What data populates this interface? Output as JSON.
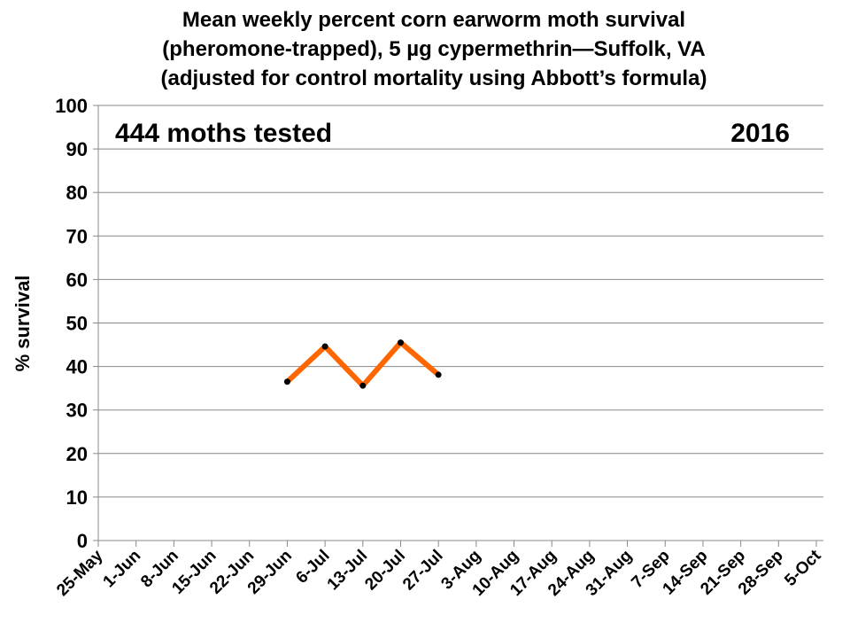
{
  "chart_data": {
    "type": "line",
    "title": [
      "Mean weekly percent corn earworm moth survival",
      "(pheromone-trapped), 5 µg cypermethrin—Suffolk, VA",
      "(adjusted for control mortality using Abbott’s formula)"
    ],
    "ylabel": "% survival",
    "xlabel": "",
    "ylim": [
      0,
      100
    ],
    "yticks": [
      "0",
      "10",
      "20",
      "30",
      "40",
      "50",
      "60",
      "70",
      "80",
      "90",
      "100"
    ],
    "categories": [
      "25-May",
      "1-Jun",
      "8-Jun",
      "15-Jun",
      "22-Jun",
      "29-Jun",
      "6-Jul",
      "13-Jul",
      "20-Jul",
      "27-Jul",
      "3-Aug",
      "10-Aug",
      "17-Aug",
      "24-Aug",
      "31-Aug",
      "7-Sep",
      "14-Sep",
      "21-Sep",
      "28-Sep",
      "5-Oct"
    ],
    "series": [
      {
        "name": "% survival",
        "color": "#ff6600",
        "x": [
          "29-Jun",
          "6-Jul",
          "13-Jul",
          "20-Jul",
          "27-Jul"
        ],
        "values": [
          36.5,
          44.6,
          35.6,
          45.5,
          38.1
        ]
      }
    ],
    "annotations": {
      "moths": "444 moths tested",
      "year": "2016"
    },
    "grid": true
  }
}
